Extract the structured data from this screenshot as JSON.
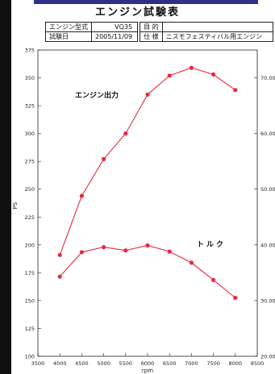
{
  "header": {
    "title": "エンジン試験表",
    "engine_model_label": "エンジン型式",
    "engine_model_value": "VQ35",
    "purpose_label": "目 的",
    "test_date_label": "試験日",
    "test_date_value": "2005/11/09",
    "spec_label": "仕 様",
    "spec_value": "ニスモフェスティバル用エンジン"
  },
  "chart_data": {
    "type": "line",
    "x": [
      4000,
      4500,
      5000,
      5500,
      6000,
      6500,
      7000,
      7500,
      8000
    ],
    "xlim": [
      3500,
      8500
    ],
    "x_ticks": [
      3500,
      4000,
      4500,
      5000,
      5500,
      6000,
      6500,
      7000,
      7500,
      8000,
      8500
    ],
    "xlabel": "rpm",
    "ylabel": "PS",
    "ylim": [
      100,
      375
    ],
    "y_ticks": [
      100,
      125,
      150,
      175,
      200,
      225,
      250,
      275,
      300,
      325,
      350,
      375
    ],
    "y2_ticks": [
      "70.00",
      "60.00",
      "50.00",
      "40.00",
      "30.00",
      "20.00"
    ],
    "y2_tick_values": [
      70,
      60,
      50,
      40,
      30,
      20
    ],
    "series": [
      {
        "name": "エンジン出力",
        "axis": "left",
        "color": "#e8283c",
        "values": [
          191,
          244,
          277,
          300,
          335,
          352,
          359,
          353,
          339
        ]
      },
      {
        "name": "トルク",
        "axis": "right",
        "color": "#e8283c",
        "values": [
          34.3,
          38.7,
          39.6,
          39.0,
          39.9,
          38.8,
          36.8,
          33.7,
          30.5
        ]
      }
    ],
    "grid": false
  }
}
